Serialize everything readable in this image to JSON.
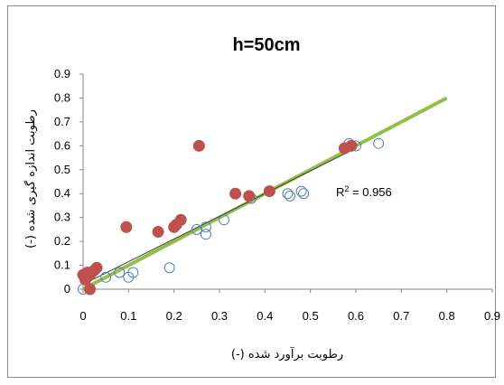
{
  "chart_data": {
    "type": "scatter",
    "title": "h=50cm",
    "xlabel": "رطوبت برآورد شده (-)",
    "ylabel": "رطوبت اندازه گیری شده (-)",
    "xlim": [
      0,
      0.9
    ],
    "ylim": [
      0,
      0.9
    ],
    "x_ticks": [
      "0",
      "0.1",
      "0.2",
      "0.3",
      "0.4",
      "0.5",
      "0.6",
      "0.7",
      "0.8",
      "0.9"
    ],
    "y_ticks": [
      "0",
      "0.1",
      "0.2",
      "0.3",
      "0.4",
      "0.5",
      "0.6",
      "0.7",
      "0.8",
      "0.9"
    ],
    "grid": false,
    "annotation": {
      "r2_prefix": "R",
      "r2_sup": "2",
      "r2_value": " = 0.956"
    },
    "series": [
      {
        "marker": "open-circle",
        "color": "#4f81bd",
        "points": [
          [
            0.0,
            0.0
          ],
          [
            0.005,
            0.04
          ],
          [
            0.01,
            0.05
          ],
          [
            0.015,
            0.06
          ],
          [
            0.02,
            0.07
          ],
          [
            0.05,
            0.05
          ],
          [
            0.08,
            0.07
          ],
          [
            0.1,
            0.05
          ],
          [
            0.11,
            0.07
          ],
          [
            0.19,
            0.09
          ],
          [
            0.25,
            0.25
          ],
          [
            0.27,
            0.23
          ],
          [
            0.27,
            0.26
          ],
          [
            0.31,
            0.29
          ],
          [
            0.37,
            0.38
          ],
          [
            0.45,
            0.4
          ],
          [
            0.455,
            0.39
          ],
          [
            0.48,
            0.41
          ],
          [
            0.485,
            0.4
          ],
          [
            0.585,
            0.61
          ],
          [
            0.6,
            0.6
          ],
          [
            0.65,
            0.61
          ]
        ]
      },
      {
        "marker": "filled-circle",
        "color": "#c0504d",
        "points": [
          [
            0.0,
            0.06
          ],
          [
            0.005,
            0.04
          ],
          [
            0.01,
            0.07
          ],
          [
            0.015,
            0.06
          ],
          [
            0.015,
            0.0
          ],
          [
            0.025,
            0.08
          ],
          [
            0.03,
            0.09
          ],
          [
            0.095,
            0.26
          ],
          [
            0.165,
            0.24
          ],
          [
            0.2,
            0.26
          ],
          [
            0.205,
            0.27
          ],
          [
            0.215,
            0.29
          ],
          [
            0.255,
            0.6
          ],
          [
            0.335,
            0.4
          ],
          [
            0.365,
            0.39
          ],
          [
            0.41,
            0.41
          ],
          [
            0.575,
            0.59
          ],
          [
            0.59,
            0.6
          ]
        ]
      }
    ],
    "lines": [
      {
        "kind": "one-to-one",
        "color": "#92c047",
        "from": [
          0,
          0
        ],
        "to": [
          0.8,
          0.8
        ]
      },
      {
        "kind": "trend",
        "color": "#404040",
        "from": [
          0,
          0.02
        ],
        "to": [
          0.6,
          0.59
        ]
      }
    ]
  }
}
